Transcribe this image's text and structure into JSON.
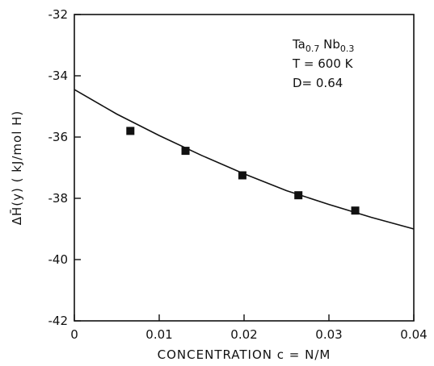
{
  "chart_data": {
    "type": "scatter",
    "xlabel": "CONCENTRATION c = N/M",
    "ylabel": "ΔH̄(y) ( kJ/mol H)",
    "xlim": [
      0,
      0.04
    ],
    "ylim": [
      -42,
      -32
    ],
    "x_ticks": [
      0,
      0.01,
      0.02,
      0.03,
      0.04
    ],
    "x_tick_labels": [
      "0",
      "0.01",
      "0.02",
      "0.03",
      "0.04"
    ],
    "y_ticks": [
      -32,
      -34,
      -36,
      -38,
      -40,
      -42
    ],
    "y_tick_labels": [
      "-32",
      "-34",
      "-36",
      "-38",
      "-40",
      "-42"
    ],
    "grid": false,
    "annotation": {
      "alloy_base1": "Ta",
      "alloy_sub1": "0.7",
      "alloy_base2": " Nb",
      "alloy_sub2": "0.3",
      "line2": "T = 600 K",
      "line3": "D= 0.64"
    },
    "series": [
      {
        "kind": "markers",
        "marker": "square",
        "x": [
          0.0066,
          0.0131,
          0.0198,
          0.0264,
          0.0331
        ],
        "y": [
          -35.8,
          -36.45,
          -37.25,
          -37.9,
          -38.4
        ]
      },
      {
        "kind": "fit-line",
        "x": [
          0,
          0.005,
          0.01,
          0.015,
          0.02,
          0.025,
          0.03,
          0.035,
          0.04
        ],
        "y": [
          -34.45,
          -35.25,
          -35.95,
          -36.6,
          -37.2,
          -37.75,
          -38.2,
          -38.62,
          -39.0
        ]
      }
    ]
  }
}
